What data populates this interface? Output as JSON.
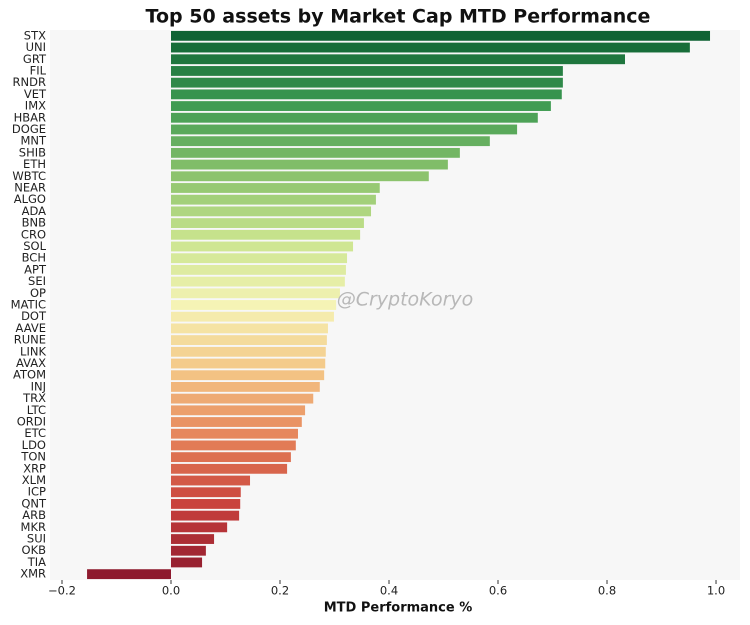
{
  "chart_data": {
    "type": "barh",
    "title": "Top 50 assets by Market Cap MTD Performance",
    "x_label": "MTD Performance %",
    "annotation": "@CryptoKoryo",
    "categories": [
      "STX",
      "UNI",
      "GRT",
      "FIL",
      "RNDR",
      "VET",
      "IMX",
      "HBAR",
      "DOGE",
      "MNT",
      "SHIB",
      "ETH",
      "WBTC",
      "NEAR",
      "ALGO",
      "ADA",
      "BNB",
      "CRO",
      "SOL",
      "BCH",
      "APT",
      "SEI",
      "OP",
      "MATIC",
      "DOT",
      "AAVE",
      "RUNE",
      "LINK",
      "AVAX",
      "ATOM",
      "INJ",
      "TRX",
      "LTC",
      "ORDI",
      "ETC",
      "LDO",
      "TON",
      "XRP",
      "XLM",
      "ICP",
      "QNT",
      "ARB",
      "MKR",
      "SUI",
      "OKB",
      "TIA",
      "XMR"
    ],
    "values": [
      0.989,
      0.952,
      0.833,
      0.719,
      0.719,
      0.717,
      0.697,
      0.673,
      0.635,
      0.585,
      0.53,
      0.508,
      0.473,
      0.383,
      0.376,
      0.367,
      0.354,
      0.347,
      0.334,
      0.323,
      0.321,
      0.319,
      0.31,
      0.303,
      0.299,
      0.288,
      0.286,
      0.284,
      0.283,
      0.281,
      0.273,
      0.261,
      0.246,
      0.24,
      0.233,
      0.229,
      0.22,
      0.213,
      0.145,
      0.128,
      0.127,
      0.125,
      0.103,
      0.079,
      0.064,
      0.057,
      -0.154
    ],
    "colormap": [
      "#0f6334",
      "#3d9a52",
      "#86c06a",
      "#c9e48e",
      "#f5f3b5",
      "#f4c585",
      "#e58159",
      "#c8403c",
      "#8e1a2e"
    ],
    "xlim": [
      -0.222,
      1.044
    ],
    "xticks": [
      {
        "value": -0.2,
        "label": "−0.2"
      },
      {
        "value": 0,
        "label": "0.0"
      },
      {
        "value": 0.2,
        "label": "0.2"
      },
      {
        "value": 0.4,
        "label": "0.4"
      },
      {
        "value": 0.6,
        "label": "0.6"
      },
      {
        "value": 0.8,
        "label": "0.8"
      },
      {
        "value": 1,
        "label": "1.0"
      }
    ],
    "grid": false
  }
}
